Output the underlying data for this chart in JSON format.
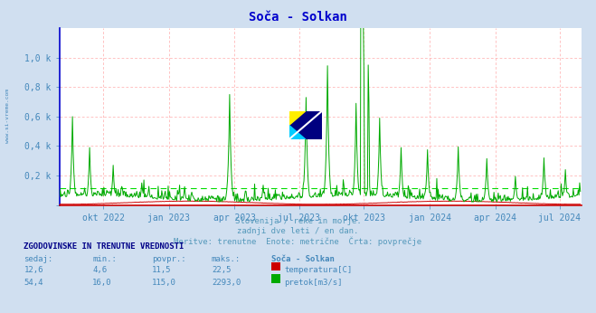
{
  "title": "Soča - Solkan",
  "title_color": "#0000cc",
  "background_color": "#d0dff0",
  "plot_bg_color": "#ffffff",
  "grid_h_color": "#ffaaaa",
  "grid_v_color": "#ffaaaa",
  "watermark_text": "www.si-vreme.com",
  "subtitle_lines": [
    "Slovenija / reke in morje.",
    "zadnji dve leti / en dan.",
    "Meritve: trenutne  Enote: metrične  Črta: povprečje"
  ],
  "subtitle_color": "#5599bb",
  "ylabel_color": "#4488bb",
  "xlabel_color": "#4488bb",
  "ylim": [
    0,
    1200
  ],
  "yticks": [
    0,
    200,
    400,
    600,
    800,
    1000
  ],
  "ytick_labels": [
    "",
    "0,2 k",
    "0,4 k",
    "0,6 k",
    "0,8 k",
    "1,0 k"
  ],
  "avg_line_value": 115.0,
  "avg_line_color": "#00dd00",
  "temp_color": "#cc0000",
  "flow_color": "#00aa00",
  "spine_left_color": "#0000cc",
  "spine_bottom_color": "#cc0000",
  "x_tick_labels": [
    "okt 2022",
    "jan 2023",
    "apr 2023",
    "jul 2023",
    "okt 2023",
    "jan 2024",
    "apr 2024",
    "jul 2024"
  ],
  "tick_positions": [
    61,
    153,
    245,
    335,
    426,
    518,
    610,
    700
  ],
  "n_days": 730,
  "table_header": "ZGODOVINSKE IN TRENUTNE VREDNOSTI",
  "table_cols": [
    "sedaj:",
    "min.:",
    "povpr.:",
    "maks.:",
    "Soča - Solkan"
  ],
  "table_data": [
    [
      "12,6",
      "4,6",
      "11,5",
      "22,5",
      "temperatura[C]"
    ],
    [
      "54,4",
      "16,0",
      "115,0",
      "2293,0",
      "pretok[m3/s]"
    ]
  ],
  "table_color": "#4488bb",
  "table_header_color": "#000088",
  "left_label": "www.si-vreme.com",
  "left_label_color": "#4488bb",
  "logo_colors": {
    "yellow": "#ffee00",
    "cyan": "#00ccff",
    "navy": "#000080"
  }
}
